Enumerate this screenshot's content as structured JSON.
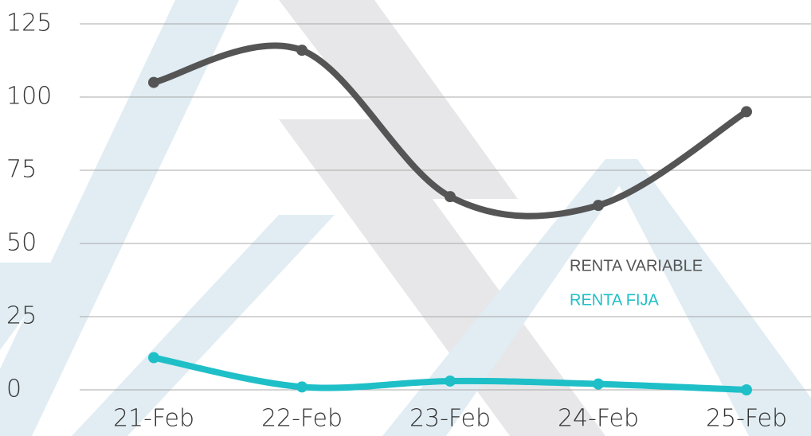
{
  "chart_data": {
    "type": "line",
    "categories": [
      "21-Feb",
      "22-Feb",
      "23-Feb",
      "24-Feb",
      "25-Feb"
    ],
    "series": [
      {
        "name": "RENTA VARIABLE",
        "color": "#555555",
        "values": [
          105,
          116,
          66,
          63,
          95
        ]
      },
      {
        "name": "RENTA FIJA",
        "color": "#1fbfc8",
        "values": [
          11,
          1,
          3,
          2,
          0
        ]
      }
    ],
    "ylim": [
      0,
      125
    ],
    "yticks": [
      0,
      25,
      50,
      75,
      100,
      125
    ],
    "grid": true,
    "smooth": true
  }
}
